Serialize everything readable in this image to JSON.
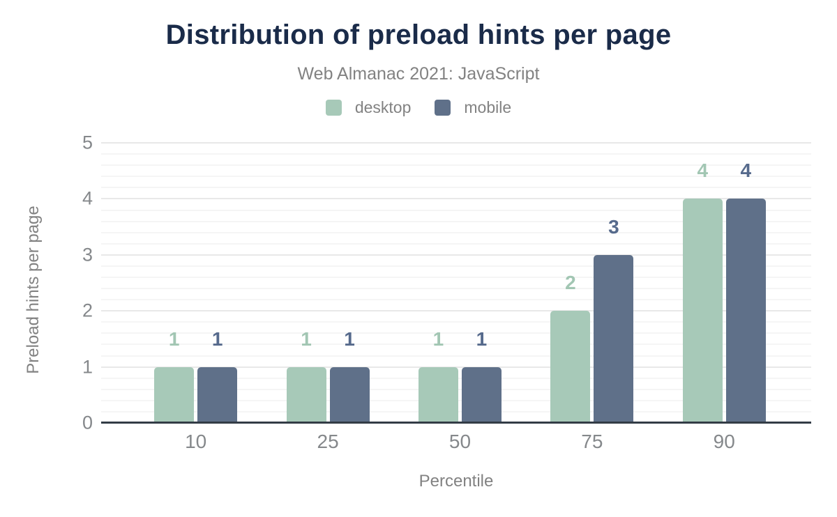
{
  "header": {
    "title": "Distribution of preload hints per page",
    "subtitle": "Web Almanac 2021: JavaScript"
  },
  "legend": {
    "items": [
      {
        "label": "desktop",
        "color": "#a7c9b8"
      },
      {
        "label": "mobile",
        "color": "#5f7089"
      }
    ]
  },
  "chart_data": {
    "type": "bar",
    "title": "Distribution of preload hints per page",
    "subtitle": "Web Almanac 2021: JavaScript",
    "categories": [
      "10",
      "25",
      "50",
      "75",
      "90"
    ],
    "series": [
      {
        "name": "desktop",
        "color": "#a7c9b8",
        "label_color": "#a2c6b3",
        "values": [
          1,
          1,
          1,
          2,
          4
        ]
      },
      {
        "name": "mobile",
        "color": "#5f7089",
        "label_color": "#566a8c",
        "values": [
          1,
          1,
          1,
          3,
          4
        ]
      }
    ],
    "xlabel": "Percentile",
    "ylabel": "Preload hints per page",
    "ylim": [
      0,
      5
    ],
    "yticks": [
      0,
      1,
      2,
      3,
      4,
      5
    ],
    "ytick_step": 1,
    "minor_grid_step": 0.2,
    "grid": true,
    "legend_position": "top"
  },
  "colors": {
    "background": "#ffffff",
    "title": "#1a2b49",
    "subtitle": "#828282",
    "tick_label": "#85888b",
    "axis_line": "#333c46",
    "major_grid": "#e8e8e8",
    "minor_grid": "#f5f5f5"
  }
}
